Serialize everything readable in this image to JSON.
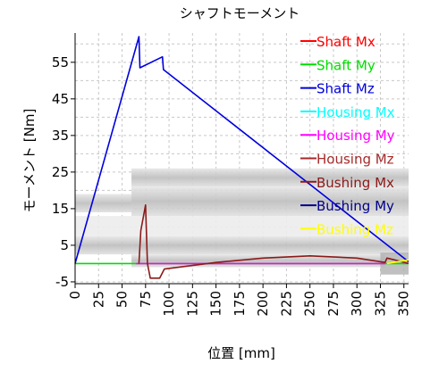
{
  "chart_data": {
    "type": "line",
    "title": "シャフトモーメント",
    "xlabel": "位置 [mm]",
    "ylabel": "モーメント [Nm]",
    "xlim": [
      0,
      355
    ],
    "ylim": [
      -5.5,
      63
    ],
    "x_ticks": [
      0,
      25,
      50,
      75,
      100,
      125,
      150,
      175,
      200,
      225,
      250,
      275,
      300,
      325,
      350
    ],
    "y_ticks": [
      -5,
      5,
      15,
      25,
      35,
      45,
      55
    ],
    "grid": true,
    "legend_position": "top-right",
    "background_image": "shaft-housing-cross-section",
    "series": [
      {
        "name": "Shaft Mx",
        "color": "#ff0000",
        "x": [],
        "y": []
      },
      {
        "name": "Shaft My",
        "color": "#00dd00",
        "x": [
          0,
          355
        ],
        "y": [
          0,
          0
        ]
      },
      {
        "name": "Shaft Mz",
        "color": "#0000dd",
        "x": [
          0,
          68,
          69,
          93,
          94,
          355
        ],
        "y": [
          0,
          62,
          53.5,
          56.5,
          53,
          0.5
        ]
      },
      {
        "name": "Housing Mx",
        "color": "#00ffff",
        "x": [],
        "y": []
      },
      {
        "name": "Housing My",
        "color": "#ff00ff",
        "x": [
          65,
          330
        ],
        "y": [
          0,
          0
        ]
      },
      {
        "name": "Housing Mz",
        "color": "#a52a2a",
        "x": [],
        "y": []
      },
      {
        "name": "Bushing Mx",
        "color": "#8b1a1a",
        "x": [
          68,
          70,
          75,
          77,
          80,
          90,
          95,
          150,
          200,
          250,
          300,
          330,
          332,
          340,
          355
        ],
        "y": [
          0,
          9,
          16,
          0,
          -4,
          -4,
          -1.5,
          0.3,
          1.5,
          2.1,
          1.5,
          0.3,
          1.5,
          1,
          0
        ]
      },
      {
        "name": "Bushing My",
        "color": "#00008b",
        "x": [],
        "y": []
      },
      {
        "name": "Bushing Mz",
        "color": "#ffff00",
        "x": [
          332,
          355
        ],
        "y": [
          0,
          1
        ]
      }
    ]
  }
}
